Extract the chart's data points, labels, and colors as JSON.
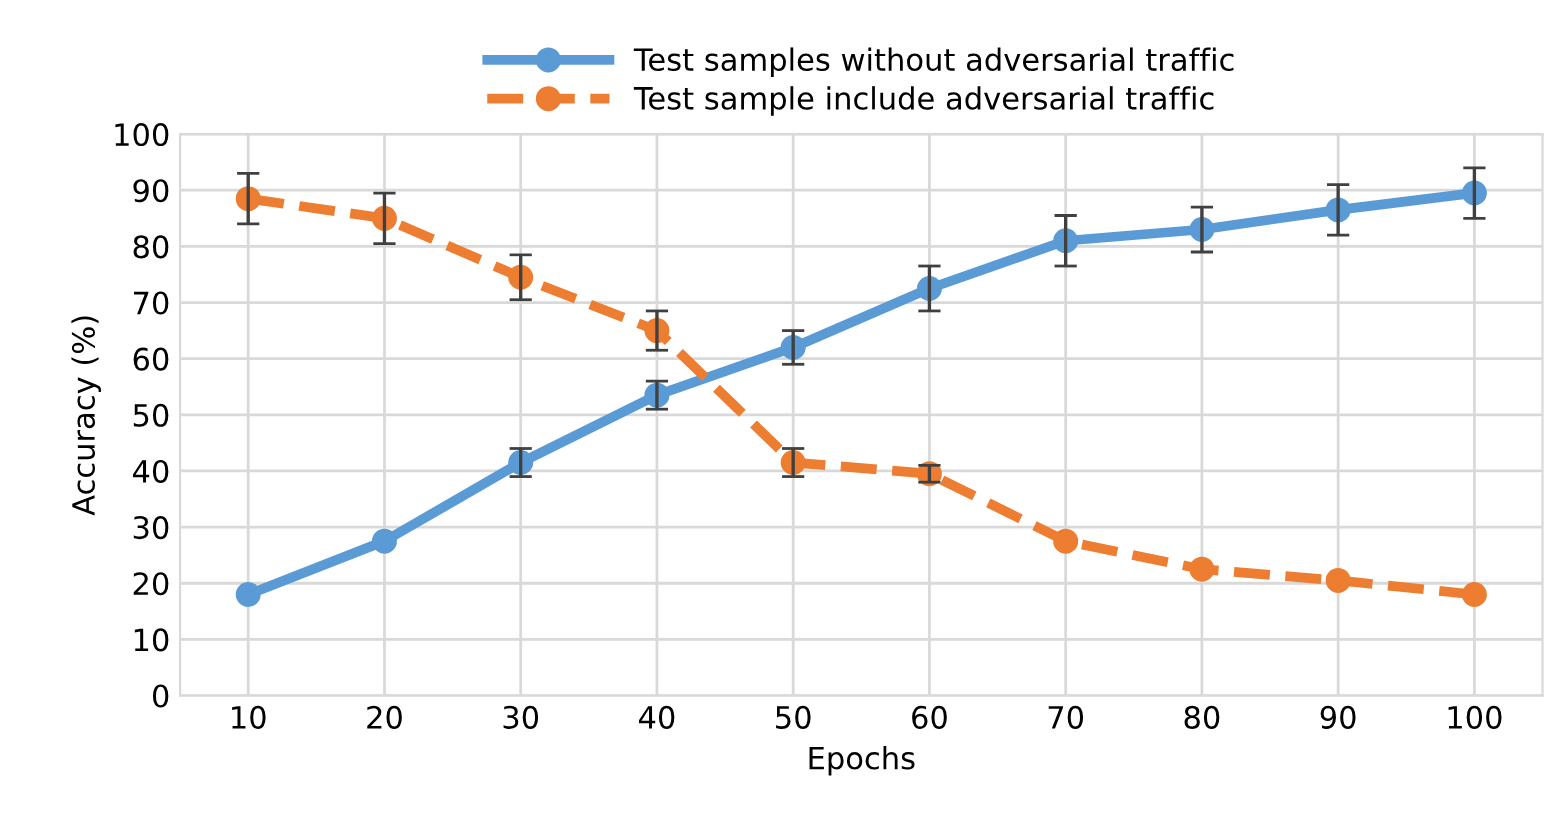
{
  "chart_data": {
    "type": "line",
    "xlabel": "Epochs",
    "ylabel": "Accuracy (%)",
    "categories": [
      "10",
      "20",
      "30",
      "40",
      "50",
      "60",
      "70",
      "80",
      "90",
      "100"
    ],
    "series": [
      {
        "name": "Test samples without adversarial traffic",
        "color": "#5b9bd5",
        "line_style": "solid",
        "values": [
          18,
          27.5,
          41.5,
          53.5,
          62,
          72.5,
          81,
          83,
          86.5,
          89.5
        ],
        "errors": [
          null,
          null,
          2.5,
          2.5,
          3,
          4,
          4.5,
          4,
          4.5,
          4.5
        ]
      },
      {
        "name": "Test sample include adversarial traffic",
        "color": "#ed7d31",
        "line_style": "dashed",
        "values": [
          88.5,
          85,
          74.5,
          65,
          41.5,
          39.5,
          27.5,
          22.5,
          20.5,
          18
        ],
        "errors": [
          4.5,
          4.5,
          4,
          3.5,
          2.5,
          1.5,
          null,
          null,
          null,
          null
        ]
      }
    ],
    "ylim": [
      0,
      100
    ],
    "yticks": [
      0,
      10,
      20,
      30,
      40,
      50,
      60,
      70,
      80,
      90,
      100
    ],
    "grid": true,
    "legend": "top",
    "marker": "circle"
  }
}
